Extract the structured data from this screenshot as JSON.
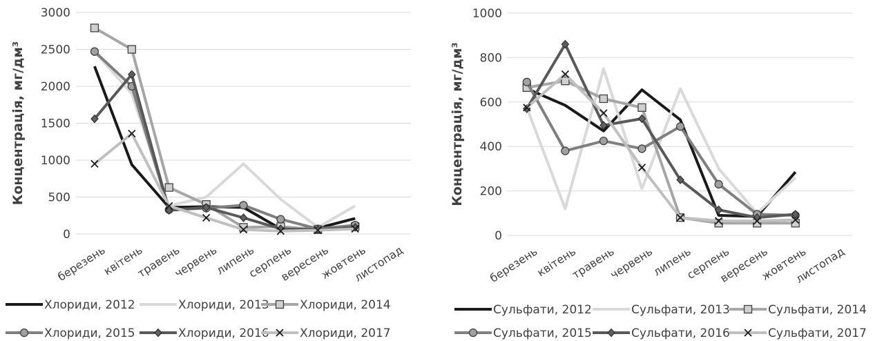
{
  "chart_data": [
    {
      "type": "line",
      "xlabel": "",
      "ylabel": "Концентрація, мг/дм³",
      "ylim": [
        0,
        3000
      ],
      "yticks": [
        0,
        500,
        1000,
        1500,
        2000,
        2500,
        3000
      ],
      "grid": "horizontal",
      "legend_position": "bottom",
      "categories": [
        "березень",
        "квітень",
        "травень",
        "червень",
        "липень",
        "серпень",
        "вересень",
        "жовтень",
        "листопад"
      ],
      "series": [
        {
          "name": "Хлориди, 2012",
          "color": "#1a1a1a",
          "marker": "none",
          "values": [
            2270,
            940,
            360,
            370,
            360,
            70,
            80,
            210,
            null
          ]
        },
        {
          "name": "Хлориди, 2013",
          "color": "#d9d9d9",
          "marker": "none",
          "values": [
            2470,
            1900,
            380,
            500,
            950,
            470,
            90,
            380,
            null
          ]
        },
        {
          "name": "Хлориди, 2014",
          "color": "#a6a6a6",
          "marker": "square",
          "values": [
            2790,
            2500,
            630,
            400,
            90,
            100,
            60,
            100,
            null
          ]
        },
        {
          "name": "Хлориди, 2015",
          "color": "#7f7f7f",
          "marker": "circle",
          "values": [
            2470,
            2000,
            330,
            350,
            390,
            200,
            70,
            120,
            null
          ]
        },
        {
          "name": "Хлориди, 2016",
          "color": "#595959",
          "marker": "diamond",
          "values": [
            1560,
            2160,
            320,
            360,
            220,
            70,
            60,
            90,
            null
          ]
        },
        {
          "name": "Хлориди, 2017",
          "color": "#bfbfbf",
          "marker": "x",
          "values": [
            950,
            1360,
            380,
            220,
            60,
            40,
            50,
            70,
            null
          ]
        }
      ]
    },
    {
      "type": "line",
      "xlabel": "",
      "ylabel": "Концентрація, мг/дм³",
      "ylim": [
        0,
        1000
      ],
      "yticks": [
        0,
        200,
        400,
        600,
        800,
        1000
      ],
      "grid": "horizontal",
      "legend_position": "bottom",
      "categories": [
        "березень",
        "квітень",
        "травень",
        "червень",
        "липень",
        "серпень",
        "вересень",
        "жовтень",
        "листопад"
      ],
      "series": [
        {
          "name": "Сульфати, 2012",
          "color": "#1a1a1a",
          "marker": "none",
          "values": [
            660,
            585,
            470,
            655,
            520,
            90,
            85,
            285,
            null
          ]
        },
        {
          "name": "Сульфати, 2013",
          "color": "#d9d9d9",
          "marker": "none",
          "values": [
            575,
            120,
            750,
            210,
            660,
            300,
            100,
            260,
            null
          ]
        },
        {
          "name": "Сульфати, 2014",
          "color": "#a6a6a6",
          "marker": "square",
          "values": [
            665,
            695,
            615,
            575,
            80,
            55,
            55,
            55,
            null
          ]
        },
        {
          "name": "Сульфати, 2015",
          "color": "#7f7f7f",
          "marker": "circle",
          "values": [
            690,
            380,
            425,
            390,
            490,
            230,
            95,
            90,
            null
          ]
        },
        {
          "name": "Сульфати, 2016",
          "color": "#595959",
          "marker": "diamond",
          "values": [
            570,
            860,
            495,
            525,
            250,
            115,
            80,
            95,
            null
          ]
        },
        {
          "name": "Сульфати, 2017",
          "color": "#bfbfbf",
          "marker": "x",
          "values": [
            575,
            725,
            550,
            305,
            80,
            65,
            65,
            70,
            null
          ]
        }
      ]
    }
  ]
}
